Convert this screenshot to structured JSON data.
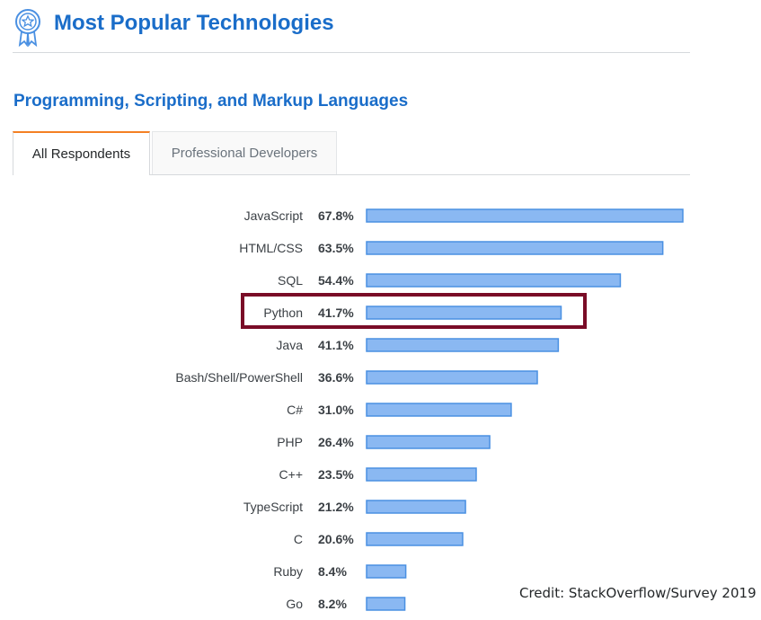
{
  "header": {
    "title": "Most Popular Technologies",
    "badge_icon": "award-badge-icon"
  },
  "section": {
    "subtitle": "Programming, Scripting, and Markup Languages"
  },
  "tabs": [
    {
      "label": "All Respondents",
      "active": true
    },
    {
      "label": "Professional Developers",
      "active": false
    }
  ],
  "highlight": {
    "label": "Python"
  },
  "credit": "Credit: StackOverflow/Survey 2019",
  "colors": {
    "title": "#1a6dc9",
    "bar_fill": "#8ab8f2",
    "bar_stroke": "#4a90e2",
    "highlight_border": "#7a0c27",
    "tab_accent": "#f48024"
  },
  "chart_data": {
    "type": "bar",
    "orientation": "horizontal",
    "categories": [
      "JavaScript",
      "HTML/CSS",
      "SQL",
      "Python",
      "Java",
      "Bash/Shell/PowerShell",
      "C#",
      "PHP",
      "C++",
      "TypeScript",
      "C",
      "Ruby",
      "Go"
    ],
    "values": [
      67.8,
      63.5,
      54.4,
      41.7,
      41.1,
      36.6,
      31.0,
      26.4,
      23.5,
      21.2,
      20.6,
      8.4,
      8.2
    ],
    "value_labels": [
      "67.8%",
      "63.5%",
      "54.4%",
      "41.7%",
      "41.1%",
      "36.6%",
      "31.0%",
      "26.4%",
      "23.5%",
      "21.2%",
      "20.6%",
      "8.4%",
      "8.2%"
    ],
    "xlim": [
      0,
      67.8
    ],
    "grid": false,
    "legend": "none"
  }
}
